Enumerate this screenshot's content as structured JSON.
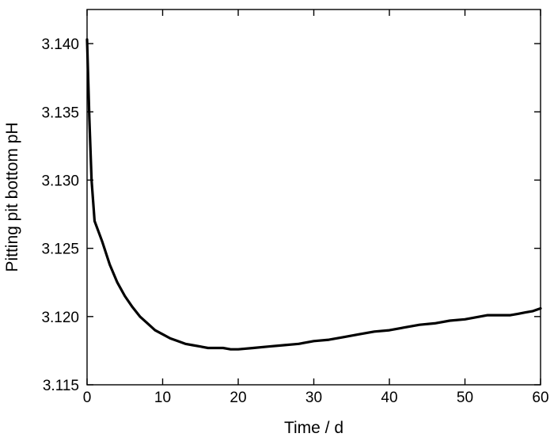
{
  "chart_data": {
    "type": "line",
    "title": "",
    "xlabel": "Time / d",
    "ylabel": "Pitting pit bottom pH",
    "xlim": [
      0,
      60
    ],
    "ylim": [
      3.115,
      3.1425
    ],
    "xticks": [
      0,
      10,
      20,
      30,
      40,
      50,
      60
    ],
    "yticks": [
      3.115,
      3.12,
      3.125,
      3.13,
      3.135,
      3.14
    ],
    "xtick_labels": [
      "0",
      "10",
      "20",
      "30",
      "40",
      "50",
      "60"
    ],
    "ytick_labels": [
      "3.115",
      "3.120",
      "3.125",
      "3.130",
      "3.135",
      "3.140"
    ],
    "grid": false,
    "legend": "none",
    "line_color": "#000000",
    "series": [
      {
        "x": [
          0,
          0.3,
          0.6,
          1,
          2,
          3,
          4,
          5,
          6,
          7,
          8,
          9,
          10,
          11,
          12,
          13,
          14,
          15,
          16,
          17,
          18,
          19,
          20,
          22,
          24,
          26,
          28,
          30,
          32,
          34,
          36,
          38,
          40,
          42,
          44,
          46,
          48,
          50,
          52,
          53,
          54,
          55,
          56,
          57,
          58,
          59,
          60
        ],
        "y": [
          3.1403,
          3.1345,
          3.13,
          3.127,
          3.1255,
          3.1238,
          3.1225,
          3.1215,
          3.1207,
          3.12,
          3.1195,
          3.119,
          3.1187,
          3.1184,
          3.1182,
          3.118,
          3.1179,
          3.1178,
          3.1177,
          3.1177,
          3.1177,
          3.1176,
          3.1176,
          3.1177,
          3.1178,
          3.1179,
          3.118,
          3.1182,
          3.1183,
          3.1185,
          3.1187,
          3.1189,
          3.119,
          3.1192,
          3.1194,
          3.1195,
          3.1197,
          3.1198,
          3.12,
          3.1201,
          3.1201,
          3.1201,
          3.1201,
          3.1202,
          3.1203,
          3.1204,
          3.1206
        ]
      }
    ]
  }
}
